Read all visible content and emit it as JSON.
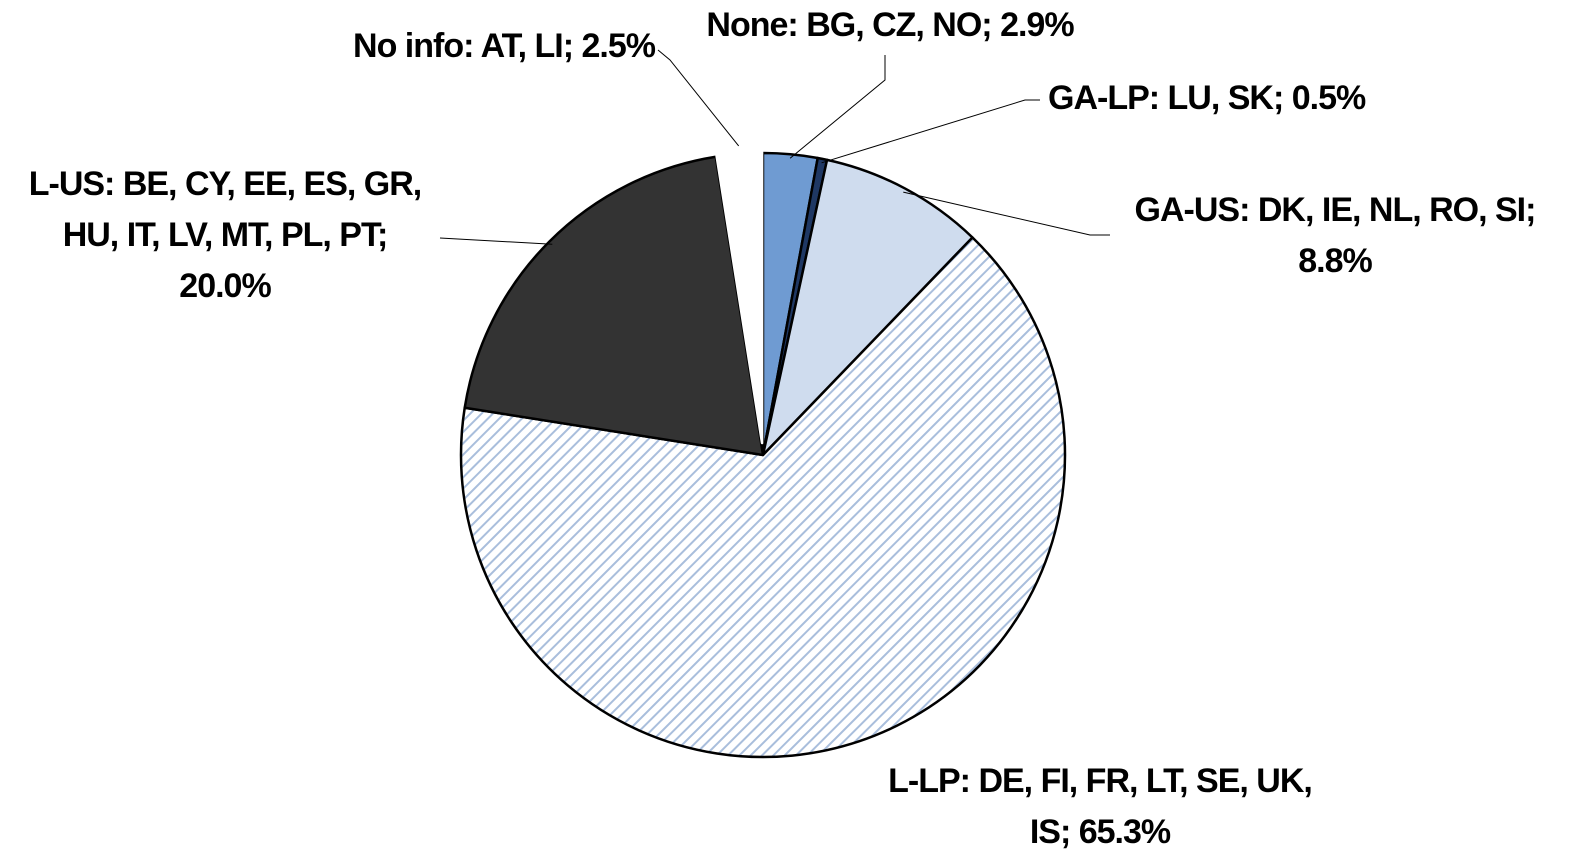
{
  "chart_data": {
    "type": "pie",
    "labels": [
      [
        "None: BG, CZ, NO; 2.9%"
      ],
      [
        "GA-LP: LU, SK; 0.5%"
      ],
      [
        "GA-US: DK, IE, NL, RO, SI;",
        "8.8%"
      ],
      [
        "L-LP: DE, FI, FR, LT, SE, UK,",
        "IS; 65.3%"
      ],
      [
        "L-US: BE, CY, EE, ES, GR,",
        "HU, IT, LV, MT, PL, PT;",
        "20.0%"
      ],
      [
        "No info: AT, LI; 2.5%"
      ]
    ],
    "values": [
      2.9,
      0.5,
      8.8,
      65.3,
      20.0,
      2.5
    ],
    "colors": [
      "#6f9bd2",
      "#1f3864",
      "#cfdcee",
      "hatch",
      "#333333",
      "#ffffff"
    ]
  }
}
